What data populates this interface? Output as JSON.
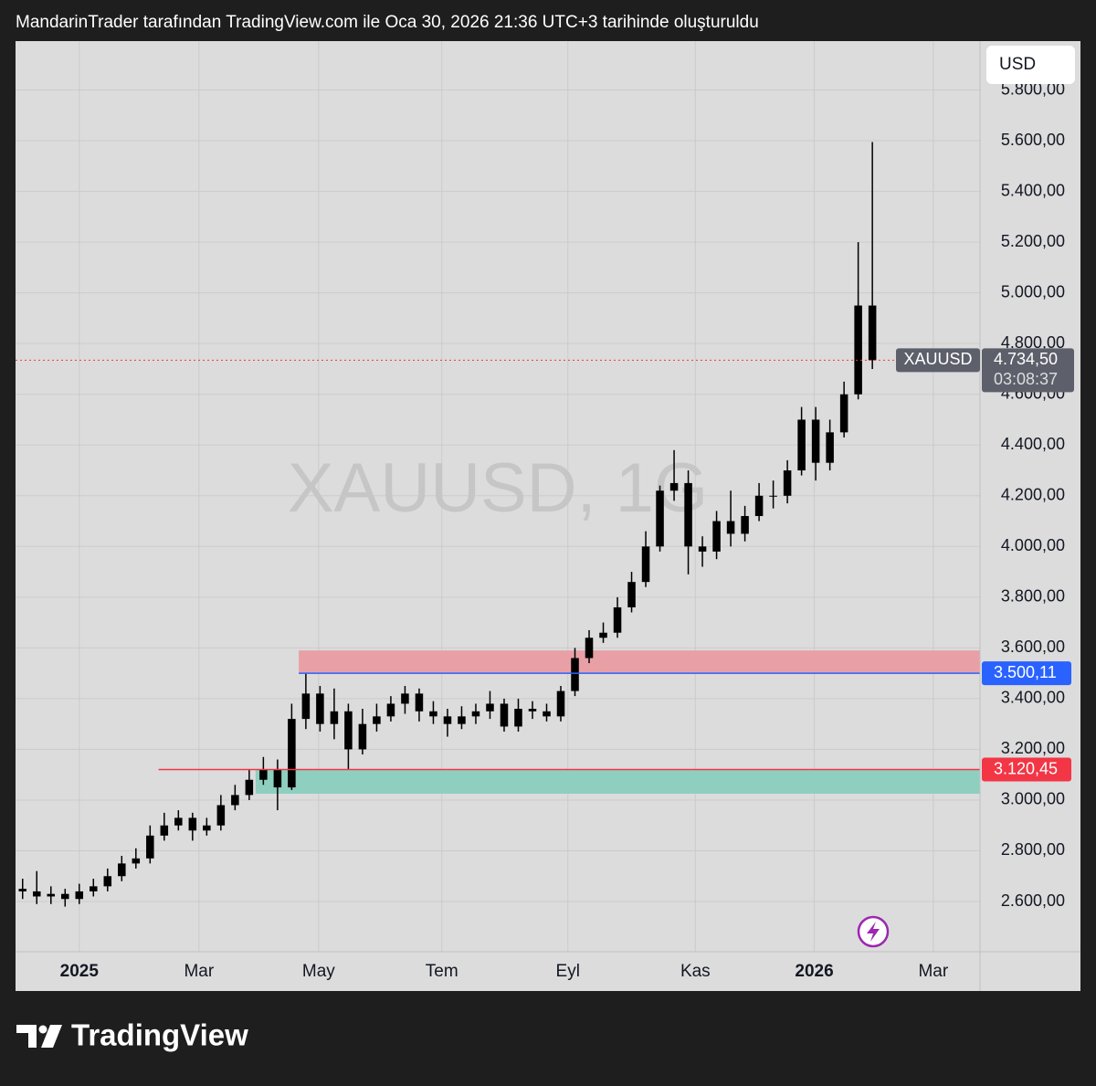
{
  "header": "MandarinTrader tarafından TradingView.com ile Oca 30, 2026 21:36 UTC+3 tarihinde oluşturuldu",
  "currency_button": "USD",
  "brand": "TradingView",
  "chart_data": {
    "type": "candlestick",
    "watermark": "XAUUSD, 1G",
    "color": "#000000",
    "x": [
      -4,
      -3,
      -2,
      -1,
      0,
      1,
      2,
      3,
      4,
      5,
      6,
      7,
      8,
      9,
      10,
      11,
      12,
      13,
      14,
      15,
      16,
      17,
      18,
      19,
      20,
      21,
      22,
      23,
      24,
      25,
      26,
      27,
      28,
      29,
      30,
      31,
      32,
      33,
      34,
      35,
      36,
      37,
      38,
      39,
      40,
      41,
      42,
      43,
      44,
      45,
      46,
      47,
      48,
      49,
      50,
      51,
      52,
      53,
      54,
      55,
      56
    ],
    "open": [
      2650,
      2640,
      2620,
      2630,
      2610,
      2640,
      2660,
      2700,
      2750,
      2770,
      2860,
      2900,
      2930,
      2880,
      2900,
      2980,
      3020,
      3080,
      3120,
      3050,
      3320,
      3420,
      3300,
      3350,
      3200,
      3300,
      3330,
      3380,
      3420,
      3350,
      3330,
      3300,
      3330,
      3350,
      3380,
      3290,
      3360,
      3350,
      3330,
      3430,
      3560,
      3640,
      3660,
      3760,
      3860,
      4000,
      4220,
      4250,
      4000,
      3980,
      4100,
      4050,
      4120,
      4200,
      4200,
      4300,
      4500,
      4330,
      4450,
      4600,
      4950
    ],
    "high": [
      2690,
      2720,
      2660,
      2650,
      2670,
      2690,
      2730,
      2780,
      2810,
      2900,
      2950,
      2960,
      2950,
      2930,
      3020,
      3060,
      3120,
      3170,
      3160,
      3380,
      3500,
      3450,
      3440,
      3380,
      3360,
      3380,
      3410,
      3450,
      3440,
      3390,
      3360,
      3370,
      3380,
      3430,
      3400,
      3400,
      3390,
      3380,
      3450,
      3600,
      3670,
      3700,
      3800,
      3900,
      4060,
      4240,
      4380,
      4300,
      4040,
      4140,
      4220,
      4160,
      4250,
      4260,
      4340,
      4550,
      4550,
      4500,
      4650,
      5200,
      5595
    ],
    "low": [
      2610,
      2590,
      2590,
      2580,
      2590,
      2620,
      2640,
      2680,
      2730,
      2750,
      2840,
      2880,
      2840,
      2860,
      2880,
      2960,
      3000,
      3060,
      2960,
      3040,
      3280,
      3270,
      3240,
      3120,
      3180,
      3270,
      3310,
      3340,
      3310,
      3300,
      3250,
      3280,
      3300,
      3320,
      3270,
      3270,
      3320,
      3310,
      3310,
      3410,
      3540,
      3620,
      3640,
      3740,
      3840,
      3980,
      4180,
      3890,
      3920,
      3950,
      4000,
      4020,
      4100,
      4150,
      4170,
      4280,
      4260,
      4300,
      4430,
      4580,
      4700
    ],
    "close": [
      2640,
      2620,
      2630,
      2610,
      2640,
      2660,
      2700,
      2750,
      2770,
      2860,
      2900,
      2930,
      2880,
      2900,
      2980,
      3020,
      3080,
      3120,
      3050,
      3320,
      3420,
      3300,
      3350,
      3200,
      3300,
      3330,
      3380,
      3420,
      3350,
      3330,
      3300,
      3330,
      3350,
      3380,
      3290,
      3360,
      3350,
      3330,
      3430,
      3560,
      3640,
      3660,
      3760,
      3860,
      4000,
      4220,
      4250,
      4000,
      3980,
      4100,
      4050,
      4120,
      4200,
      4200,
      4300,
      4500,
      4330,
      4450,
      4600,
      4950,
      4734.5
    ],
    "xlim": [
      -4.5,
      63.6
    ],
    "xticks": [
      {
        "value": 0,
        "label": "2025"
      },
      {
        "value": 8.45,
        "label": "Mar"
      },
      {
        "value": 16.9,
        "label": "May"
      },
      {
        "value": 25.6,
        "label": "Tem"
      },
      {
        "value": 34.5,
        "label": "Eyl"
      },
      {
        "value": 43.5,
        "label": "Kas"
      },
      {
        "value": 51.9,
        "label": "2026"
      },
      {
        "value": 60.3,
        "label": "Mar"
      }
    ],
    "ylim": [
      2402,
      6090
    ],
    "yticks": [
      {
        "value": 2600,
        "label": "2.600,00"
      },
      {
        "value": 2800,
        "label": "2.800,00"
      },
      {
        "value": 3000,
        "label": "3.000,00"
      },
      {
        "value": 3200,
        "label": "3.200,00"
      },
      {
        "value": 3400,
        "label": "3.400,00"
      },
      {
        "value": 3600,
        "label": "3.600,00"
      },
      {
        "value": 3800,
        "label": "3.800,00"
      },
      {
        "value": 4000,
        "label": "4.000,00"
      },
      {
        "value": 4200,
        "label": "4.200,00"
      },
      {
        "value": 4400,
        "label": "4.400,00"
      },
      {
        "value": 4600,
        "label": "4.600,00"
      },
      {
        "value": 4800,
        "label": "4.800,00"
      },
      {
        "value": 5000,
        "label": "5.000,00"
      },
      {
        "value": 5200,
        "label": "5.200,00"
      },
      {
        "value": 5400,
        "label": "5.400,00"
      },
      {
        "value": 5600,
        "label": "5.600,00"
      },
      {
        "value": 5800,
        "label": "5.800,00"
      }
    ],
    "grid": true,
    "zones": [
      {
        "low": 3500,
        "high": 3590,
        "x_start": 15.5,
        "color": "#e8a0a6"
      },
      {
        "low": 3025,
        "high": 3120.45,
        "x_start": 12.45,
        "color": "#8fcfc0"
      }
    ],
    "levels": [
      {
        "value": 3500.11,
        "label": "3.500,11",
        "x_start": 15.5,
        "color": "#2962ff"
      },
      {
        "value": 3120.45,
        "label": "3.120,45",
        "x_start": 5.6,
        "color": "#f23645"
      }
    ],
    "last_price": {
      "value": 4734.5,
      "label": "4.734,50",
      "symbol": "XAUUSD",
      "countdown": "03:08:37",
      "color": "#5d606b"
    }
  }
}
